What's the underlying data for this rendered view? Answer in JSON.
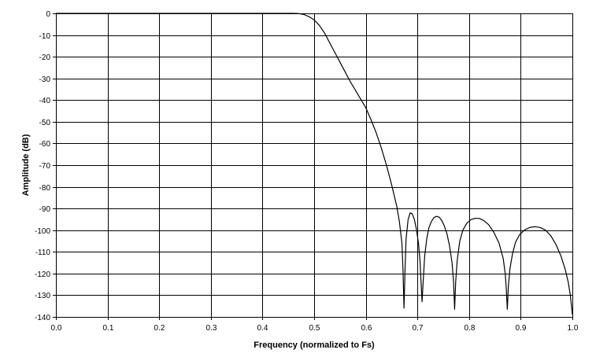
{
  "chart_data": {
    "type": "line",
    "title": "",
    "xlabel": "Frequency (normalized to Fs)",
    "ylabel": "Amplitude (dB)",
    "xlim": [
      0.0,
      1.0
    ],
    "ylim": [
      -140,
      0
    ],
    "grid": true,
    "legend": "none",
    "colors": {
      "line": "#000000",
      "grid": "#000000",
      "background": "#ffffff"
    },
    "x_ticks": [
      {
        "value": 0.0,
        "label": "0.0"
      },
      {
        "value": 0.1,
        "label": "0.1"
      },
      {
        "value": 0.2,
        "label": "0.2"
      },
      {
        "value": 0.3,
        "label": "0.3"
      },
      {
        "value": 0.4,
        "label": "0.4"
      },
      {
        "value": 0.5,
        "label": "0.5"
      },
      {
        "value": 0.6,
        "label": "0.6"
      },
      {
        "value": 0.7,
        "label": "0.7"
      },
      {
        "value": 0.8,
        "label": "0.8"
      },
      {
        "value": 0.9,
        "label": "0.9"
      },
      {
        "value": 1.0,
        "label": "1.0"
      }
    ],
    "y_ticks": [
      {
        "value": 0,
        "label": "0"
      },
      {
        "value": -10,
        "label": "-10"
      },
      {
        "value": -20,
        "label": "-20"
      },
      {
        "value": -30,
        "label": "-30"
      },
      {
        "value": -40,
        "label": "-40"
      },
      {
        "value": -50,
        "label": "-50"
      },
      {
        "value": -60,
        "label": "-60"
      },
      {
        "value": -70,
        "label": "-70"
      },
      {
        "value": -80,
        "label": "-80"
      },
      {
        "value": -90,
        "label": "-90"
      },
      {
        "value": -100,
        "label": "-100"
      },
      {
        "value": -110,
        "label": "-110"
      },
      {
        "value": -120,
        "label": "-120"
      },
      {
        "value": -130,
        "label": "-130"
      },
      {
        "value": -140,
        "label": "-140"
      }
    ],
    "series": [
      {
        "points": [
          [
            0.0,
            0
          ],
          [
            0.1,
            0
          ],
          [
            0.2,
            0
          ],
          [
            0.3,
            0
          ],
          [
            0.4,
            0
          ],
          [
            0.46,
            0
          ],
          [
            0.47,
            -0.1
          ],
          [
            0.48,
            -0.5
          ],
          [
            0.49,
            -1.5
          ],
          [
            0.5,
            -3.0
          ],
          [
            0.51,
            -5.5
          ],
          [
            0.52,
            -9.0
          ],
          [
            0.53,
            -13.5
          ],
          [
            0.54,
            -18.0
          ],
          [
            0.55,
            -22.5
          ],
          [
            0.56,
            -27.0
          ],
          [
            0.57,
            -31.5
          ],
          [
            0.58,
            -35.5
          ],
          [
            0.59,
            -39.5
          ],
          [
            0.6,
            -43.5
          ],
          [
            0.61,
            -49.0
          ],
          [
            0.62,
            -55.0
          ],
          [
            0.63,
            -62.0
          ],
          [
            0.64,
            -70.0
          ],
          [
            0.65,
            -79.0
          ],
          [
            0.66,
            -89.0
          ],
          [
            0.665,
            -96.0
          ],
          [
            0.67,
            -106.0
          ],
          [
            0.672,
            -118.0
          ],
          [
            0.674,
            -136.0
          ],
          [
            0.676,
            -118.0
          ],
          [
            0.678,
            -104.0
          ],
          [
            0.682,
            -95.0
          ],
          [
            0.686,
            -92.0
          ],
          [
            0.69,
            -92.5
          ],
          [
            0.694,
            -95.0
          ],
          [
            0.698,
            -99.5
          ],
          [
            0.702,
            -106.0
          ],
          [
            0.705,
            -114.0
          ],
          [
            0.707,
            -124.0
          ],
          [
            0.709,
            -133.0
          ],
          [
            0.711,
            -124.0
          ],
          [
            0.714,
            -112.0
          ],
          [
            0.718,
            -104.0
          ],
          [
            0.722,
            -99.0
          ],
          [
            0.727,
            -96.0
          ],
          [
            0.732,
            -94.2
          ],
          [
            0.737,
            -93.6
          ],
          [
            0.742,
            -94.0
          ],
          [
            0.747,
            -95.5
          ],
          [
            0.752,
            -98.0
          ],
          [
            0.757,
            -101.5
          ],
          [
            0.762,
            -107.0
          ],
          [
            0.767,
            -115.0
          ],
          [
            0.77,
            -124.0
          ],
          [
            0.772,
            -136.5
          ],
          [
            0.774,
            -124.0
          ],
          [
            0.777,
            -114.0
          ],
          [
            0.782,
            -105.0
          ],
          [
            0.788,
            -100.0
          ],
          [
            0.795,
            -97.0
          ],
          [
            0.803,
            -95.2
          ],
          [
            0.812,
            -94.5
          ],
          [
            0.82,
            -94.6
          ],
          [
            0.828,
            -95.5
          ],
          [
            0.838,
            -97.5
          ],
          [
            0.848,
            -101.0
          ],
          [
            0.858,
            -106.0
          ],
          [
            0.866,
            -113.0
          ],
          [
            0.87,
            -120.0
          ],
          [
            0.872,
            -127.0
          ],
          [
            0.874,
            -136.5
          ],
          [
            0.876,
            -126.0
          ],
          [
            0.879,
            -118.0
          ],
          [
            0.884,
            -111.0
          ],
          [
            0.89,
            -105.5
          ],
          [
            0.898,
            -102.0
          ],
          [
            0.908,
            -99.8
          ],
          [
            0.918,
            -98.7
          ],
          [
            0.928,
            -98.4
          ],
          [
            0.938,
            -98.8
          ],
          [
            0.948,
            -100.0
          ],
          [
            0.958,
            -102.5
          ],
          [
            0.968,
            -106.5
          ],
          [
            0.978,
            -112.0
          ],
          [
            0.986,
            -118.0
          ],
          [
            0.992,
            -124.0
          ],
          [
            0.996,
            -130.0
          ],
          [
            1.0,
            -139.0
          ]
        ]
      }
    ]
  }
}
